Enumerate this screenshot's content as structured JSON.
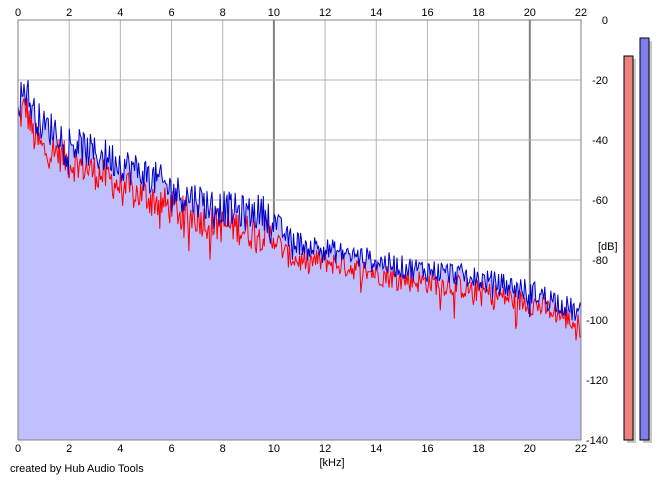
{
  "chart_data": {
    "type": "area",
    "xlabel": "[kHz]",
    "ylabel": "[dB]",
    "xlim": [
      0,
      22
    ],
    "ylim": [
      -140,
      0
    ],
    "x_ticks": [
      "0",
      "2",
      "4",
      "6",
      "8",
      "10",
      "12",
      "14",
      "16",
      "18",
      "20",
      "22"
    ],
    "y_ticks": [
      "0",
      "-20",
      "-40",
      "-60",
      "-80",
      "-100",
      "-120",
      "-140"
    ],
    "grid": true,
    "series": [
      {
        "channel": "red",
        "color": "#ff0000",
        "envelope": [
          [
            0,
            -33
          ],
          [
            0.3,
            -28
          ],
          [
            0.6,
            -38
          ],
          [
            1,
            -43
          ],
          [
            1.5,
            -43
          ],
          [
            2,
            -47
          ],
          [
            2.5,
            -48
          ],
          [
            3,
            -50
          ],
          [
            3.5,
            -52
          ],
          [
            4,
            -55
          ],
          [
            4.5,
            -57
          ],
          [
            5,
            -58
          ],
          [
            5.5,
            -60
          ],
          [
            6,
            -62
          ],
          [
            6.5,
            -64
          ],
          [
            7,
            -65
          ],
          [
            7.5,
            -67
          ],
          [
            8,
            -68
          ],
          [
            8.5,
            -68
          ],
          [
            9,
            -70
          ],
          [
            9.5,
            -70
          ],
          [
            10,
            -72
          ],
          [
            10.5,
            -78
          ],
          [
            11,
            -80
          ],
          [
            12,
            -80
          ],
          [
            13,
            -82
          ],
          [
            14,
            -84
          ],
          [
            15,
            -86
          ],
          [
            16,
            -87
          ],
          [
            17,
            -88
          ],
          [
            18,
            -90
          ],
          [
            19,
            -92
          ],
          [
            20,
            -94
          ],
          [
            21,
            -97
          ],
          [
            22,
            -102
          ]
        ]
      },
      {
        "channel": "blue",
        "color": "#0000cc",
        "envelope": [
          [
            0,
            -27
          ],
          [
            0.3,
            -22
          ],
          [
            0.6,
            -30
          ],
          [
            1,
            -35
          ],
          [
            1.5,
            -36
          ],
          [
            2,
            -40
          ],
          [
            2.5,
            -42
          ],
          [
            3,
            -44
          ],
          [
            3.5,
            -45
          ],
          [
            4,
            -47
          ],
          [
            4.5,
            -49
          ],
          [
            5,
            -51
          ],
          [
            5.5,
            -53
          ],
          [
            6,
            -56
          ],
          [
            6.5,
            -58
          ],
          [
            7,
            -59
          ],
          [
            7.5,
            -61
          ],
          [
            8,
            -62
          ],
          [
            8.5,
            -63
          ],
          [
            9,
            -64
          ],
          [
            9.5,
            -63
          ],
          [
            10,
            -66
          ],
          [
            10.5,
            -72
          ],
          [
            11,
            -74
          ],
          [
            12,
            -76
          ],
          [
            13,
            -78
          ],
          [
            14,
            -80
          ],
          [
            15,
            -82
          ],
          [
            16,
            -83
          ],
          [
            17,
            -84
          ],
          [
            18,
            -86
          ],
          [
            19,
            -88
          ],
          [
            20,
            -90
          ],
          [
            21,
            -93
          ],
          [
            22,
            -98
          ]
        ]
      }
    ],
    "meters": [
      {
        "channel": "red",
        "level_db": -12,
        "color": "#f07f7f"
      },
      {
        "channel": "blue",
        "level_db": -6,
        "color": "#7f7ff0"
      }
    ],
    "fill_color": "#c0c0ff",
    "grid_color": "#b4b4b4",
    "major_grid_color": "#808080"
  },
  "credit": "created by Hub Audio Tools"
}
